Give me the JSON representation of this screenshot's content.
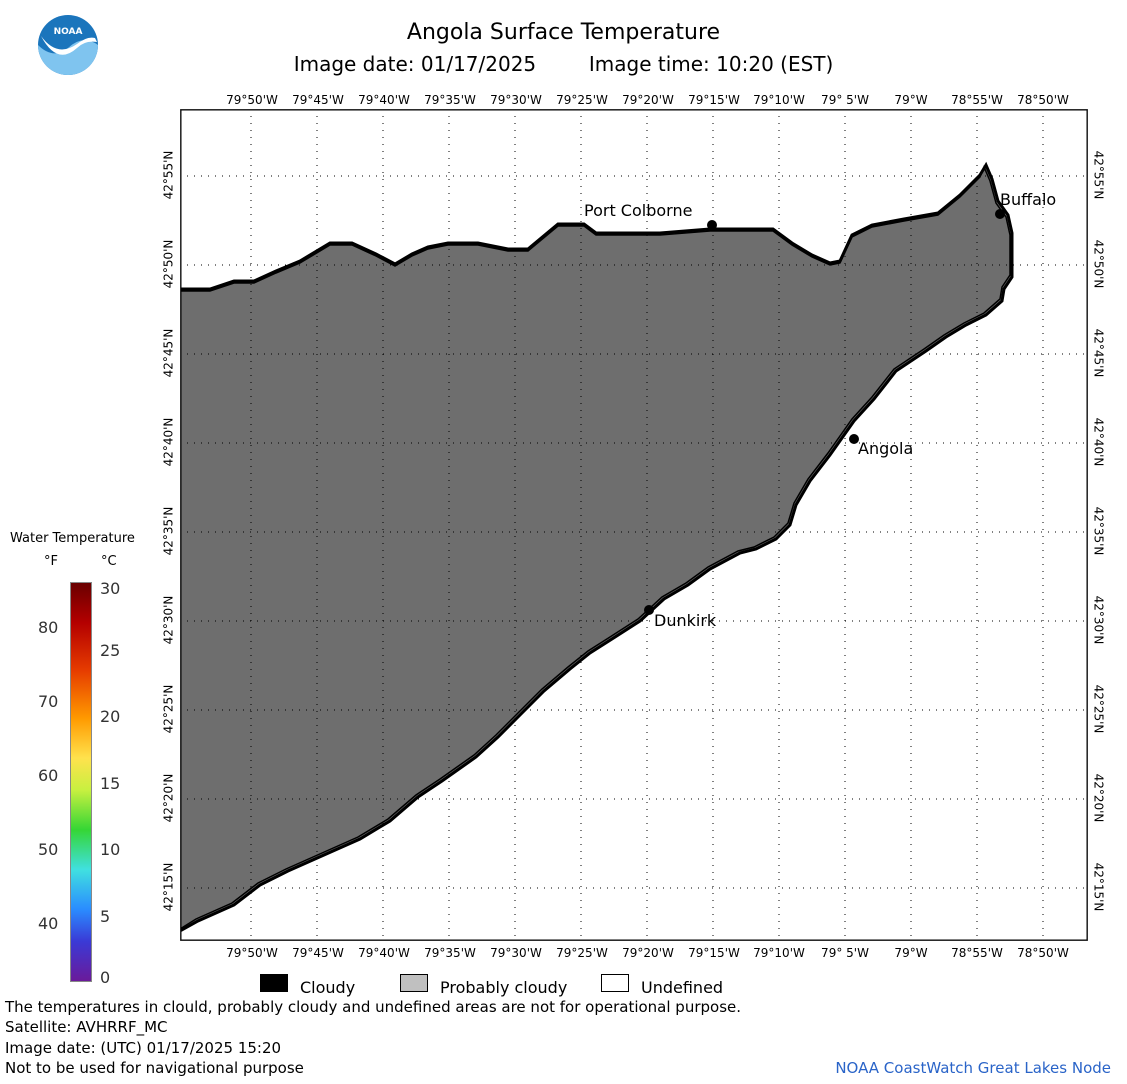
{
  "header": {
    "title": "Angola Surface Temperature",
    "image_date_line": "Image date: 01/17/2025",
    "image_time_line": "Image time: 10:20 (EST)"
  },
  "logo": {
    "text": "NOAA"
  },
  "map": {
    "longitude_labels": [
      "79°50'W",
      "79°45'W",
      "79°40'W",
      "79°35'W",
      "79°30'W",
      "79°25'W",
      "79°20'W",
      "79°15'W",
      "79°10'W",
      "79° 5'W",
      "79°W",
      "78°55'W",
      "78°50'W"
    ],
    "latitude_labels": [
      "42°55'N",
      "42°50'N",
      "42°45'N",
      "42°40'N",
      "42°35'N",
      "42°30'N",
      "42°25'N",
      "42°20'N",
      "42°15'N"
    ],
    "places": [
      {
        "name": "Port Colborne"
      },
      {
        "name": "Buffalo"
      },
      {
        "name": "Angola"
      },
      {
        "name": "Dunkirk"
      }
    ],
    "colors": {
      "land": "#6e6e6e",
      "cloudy": "#000000",
      "undefined": "#ffffff",
      "probably_cloudy": "#c0c0c0"
    }
  },
  "legend": {
    "title": "Water Temperature",
    "unit_f": "°F",
    "unit_c": "°C",
    "fahrenheit_ticks": [
      "80",
      "70",
      "60",
      "50",
      "40"
    ],
    "celsius_ticks": [
      "30",
      "25",
      "20",
      "15",
      "10",
      "5",
      "0"
    ]
  },
  "key": {
    "cloudy": "Cloudy",
    "probably_cloudy": "Probably cloudy",
    "undefined": "Undefined"
  },
  "footer": {
    "disclaimer": "The temperatures in clould, probably cloudy and undefined areas are not for operational purpose.",
    "satellite": "Satellite: AVHRRF_MC",
    "utc_date": "Image date: (UTC) 01/17/2025  15:20",
    "nav_warning": "Not to be used for navigational purpose",
    "credit": "NOAA CoastWatch Great Lakes Node"
  }
}
